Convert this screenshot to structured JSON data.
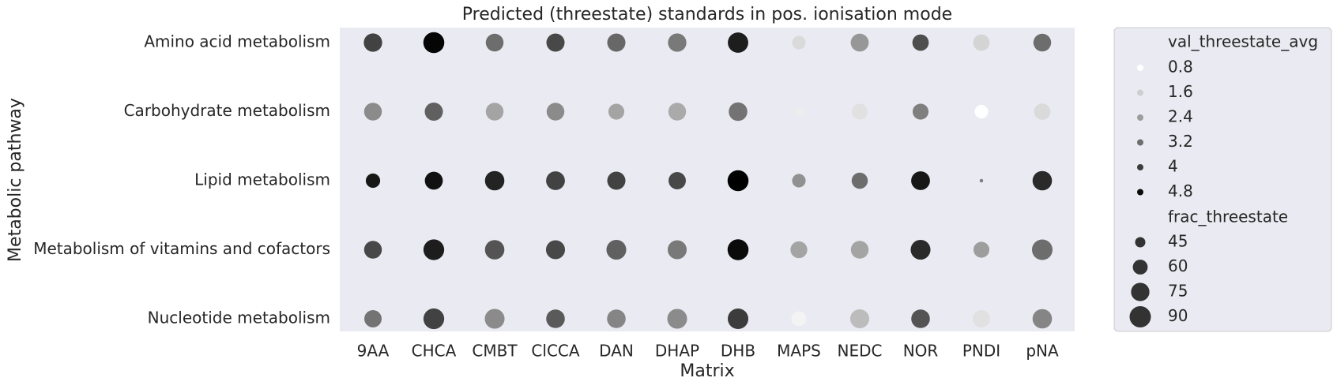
{
  "chart_data": {
    "type": "scatter",
    "title": "Predicted (threestate) standards in pos. ionisation mode",
    "x_label": "Matrix",
    "y_label": "Metabolic pathway",
    "x_categories": [
      "9AA",
      "CHCA",
      "CMBT",
      "ClCCA",
      "DAN",
      "DHAP",
      "DHB",
      "MAPS",
      "NEDC",
      "NOR",
      "PNDI",
      "pNA"
    ],
    "y_categories": [
      "Amino acid metabolism",
      "Carbohydrate metabolism",
      "Lipid metabolism",
      "Metabolism of vitamins and cofactors",
      "Nucleotide metabolism"
    ],
    "hue_values": [
      [
        3.9,
        4.9,
        3.2,
        3.8,
        3.3,
        3.0,
        4.5,
        1.4,
        2.5,
        3.7,
        1.5,
        3.2
      ],
      [
        2.7,
        3.4,
        2.3,
        2.7,
        2.3,
        2.2,
        3.1,
        1.1,
        1.3,
        2.9,
        0.8,
        1.4
      ],
      [
        4.6,
        4.7,
        4.4,
        3.9,
        3.9,
        3.8,
        5.0,
        2.6,
        3.2,
        4.6,
        2.9,
        4.3
      ],
      [
        3.8,
        4.5,
        3.6,
        3.8,
        3.4,
        3.0,
        4.8,
        2.3,
        2.3,
        4.3,
        2.4,
        3.2
      ],
      [
        3.1,
        3.9,
        2.7,
        3.5,
        2.8,
        2.7,
        4.0,
        1.0,
        1.9,
        3.6,
        1.3,
        2.8
      ]
    ],
    "size_values": [
      [
        75,
        88,
        72,
        74,
        74,
        75,
        85,
        55,
        73,
        66,
        66,
        72
      ],
      [
        72,
        74,
        72,
        72,
        64,
        72,
        76,
        42,
        64,
        64,
        55,
        66
      ],
      [
        58,
        73,
        80,
        77,
        74,
        70,
        88,
        55,
        65,
        77,
        33,
        80
      ],
      [
        72,
        87,
        80,
        78,
        82,
        78,
        88,
        68,
        72,
        82,
        64,
        86
      ],
      [
        70,
        87,
        82,
        76,
        76,
        82,
        86,
        60,
        78,
        76,
        70,
        80
      ]
    ],
    "hue_legend": {
      "title": "val_threestate_avg",
      "values": [
        0.8,
        1.6,
        2.4,
        3.2,
        4.0,
        4.8
      ]
    },
    "size_legend": {
      "title": "frac_threestate",
      "values": [
        45,
        60,
        75,
        90
      ]
    },
    "legend_position": "outside right"
  }
}
